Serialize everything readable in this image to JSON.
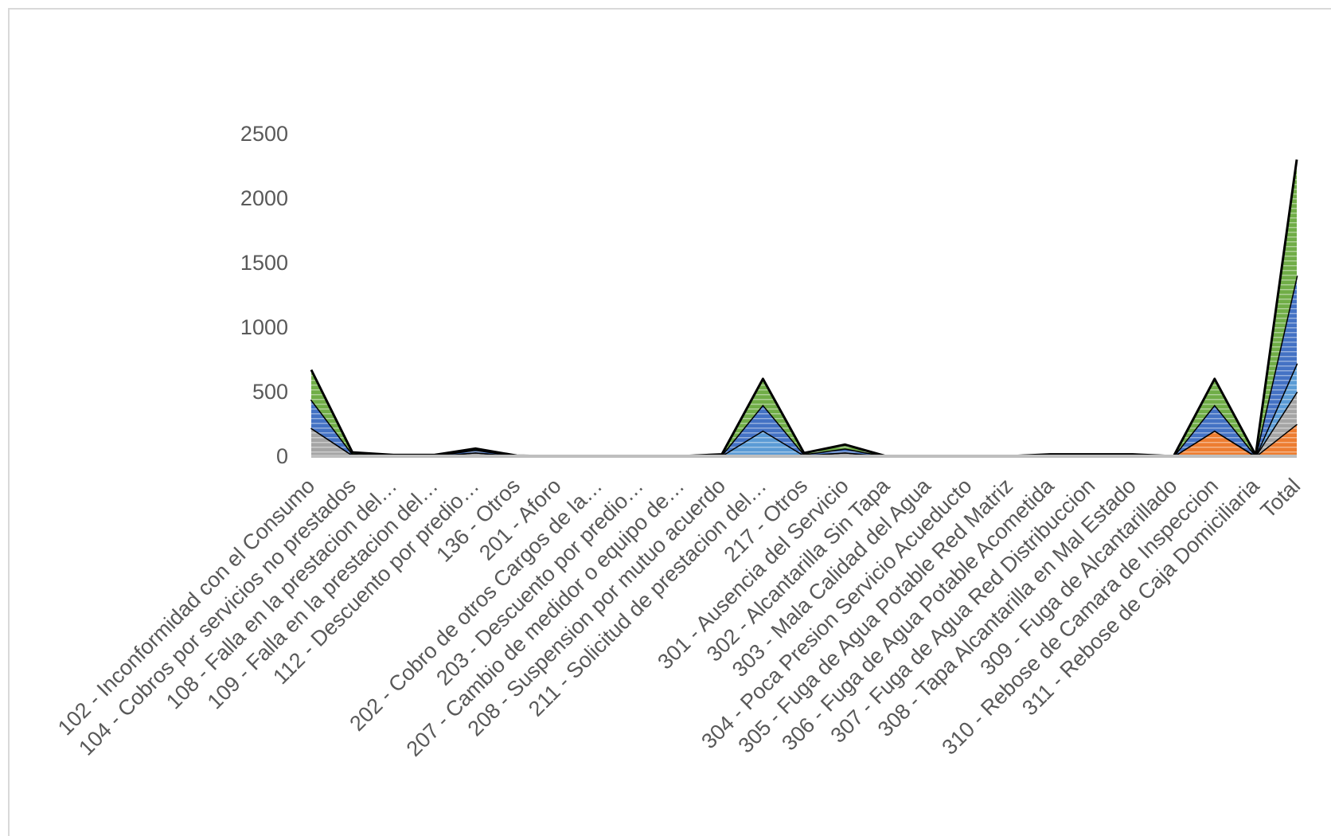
{
  "chart_data": {
    "type": "area",
    "stacked": true,
    "title": "",
    "xlabel": "",
    "ylabel": "",
    "ylim": [
      0,
      2500
    ],
    "yticks": [
      0,
      500,
      1000,
      1500,
      2000,
      2500
    ],
    "grid": false,
    "legend": "none",
    "categories": [
      "102 - Inconformidad con el Consumo",
      "104 - Cobros por servicios no prestados",
      "108 - Falla en la prestacion del…",
      "109 - Falla en la prestacion del…",
      "112 - Descuento por predio…",
      "136 - Otros",
      "201 - Aforo",
      "202 - Cobro de otros Cargos de la…",
      "203 - Descuento por predio…",
      "207 - Cambio de medidor o equipo de…",
      "208 - Suspension por mutuo acuerdo",
      "211 - Solicitud de prestacion del…",
      "217 - Otros",
      "301 - Ausencia del Servicio",
      "302 - Alcantarilla Sin Tapa",
      "303 - Mala Calidad del Agua",
      "304 - Poca Presion Servicio Acueducto",
      "305 - Fuga de Agua Potable Red Matriz",
      "306 - Fuga de Agua Potable Acometida",
      "307 - Fuga de Agua Red Distribuccion",
      "308 - Tapa Alcantarilla en Mal Estado",
      "309 - Fuga de Alcantarillado",
      "310 - Rebose de Camara de Inspeccion",
      "311 - Rebose de Caja Domiciliaria",
      "Total"
    ],
    "series": [
      {
        "color": "#ed7d31",
        "values": [
          0,
          0,
          0,
          0,
          0,
          0,
          0,
          0,
          0,
          0,
          0,
          0,
          0,
          0,
          0,
          0,
          0,
          0,
          0,
          0,
          0,
          0,
          200,
          0,
          250
        ]
      },
      {
        "color": "#a5a5a5",
        "values": [
          220,
          10,
          3,
          3,
          30,
          2,
          0,
          0,
          0,
          0,
          5,
          0,
          8,
          30,
          0,
          0,
          0,
          0,
          5,
          5,
          5,
          0,
          0,
          3,
          250
        ]
      },
      {
        "color": "#5b9bd5",
        "values": [
          0,
          0,
          0,
          0,
          0,
          0,
          0,
          0,
          0,
          0,
          0,
          200,
          0,
          0,
          0,
          0,
          0,
          0,
          0,
          0,
          0,
          0,
          0,
          0,
          220
        ]
      },
      {
        "color": "#4472c4",
        "values": [
          220,
          10,
          3,
          3,
          20,
          2,
          0,
          0,
          0,
          0,
          5,
          200,
          8,
          30,
          0,
          0,
          0,
          0,
          5,
          5,
          5,
          0,
          200,
          3,
          680
        ]
      },
      {
        "color": "#70ad47",
        "values": [
          230,
          10,
          4,
          4,
          10,
          1,
          0,
          0,
          0,
          0,
          5,
          200,
          9,
          30,
          0,
          0,
          0,
          0,
          5,
          5,
          5,
          0,
          200,
          4,
          900
        ]
      }
    ]
  }
}
